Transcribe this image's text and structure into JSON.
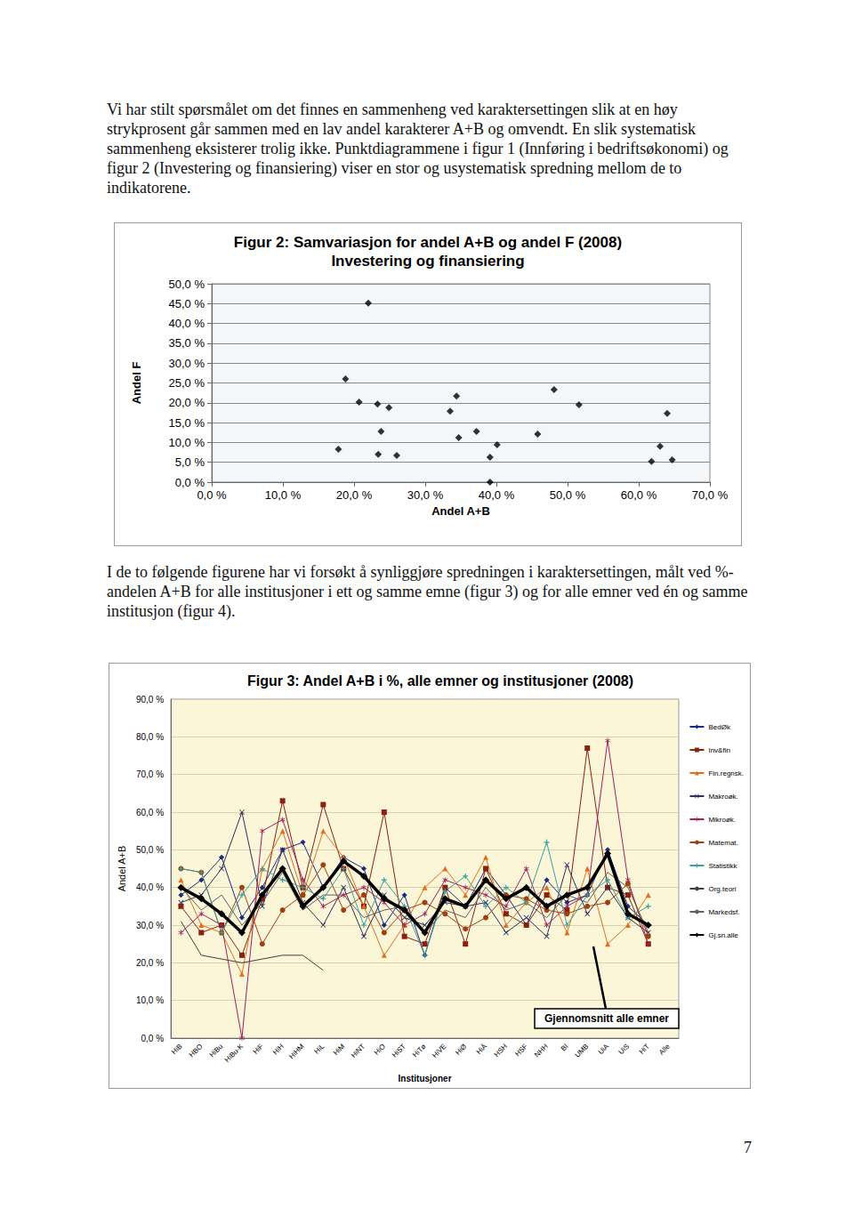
{
  "paragraphs": [
    "Vi har stilt spørsmålet om det finnes en sammenheng ved karaktersettingen slik at en høy strykprosent går sammen med en lav andel karakterer A+B og omvendt. En slik systematisk sammenheng eksisterer trolig ikke. Punktdiagrammene i figur 1 (Innføring i bedriftsøkonomi) og figur 2 (Investering og finansiering) viser en stor og usystematisk spredning mellom de to indikatorene.",
    "I de to følgende figurene har vi forsøkt å synliggjøre spredningen i karaktersettingen, målt ved %-andelen A+B for alle institusjoner i ett og samme emne (figur 3) og for alle emner ved én og samme institusjon (figur 4)."
  ],
  "page_number": "7",
  "chart_data": [
    {
      "type": "scatter",
      "title": "Figur 2: Samvariasjon for andel A+B og andel F (2008)",
      "subtitle": "Investering og finansiering",
      "x_label": "Andel A+B",
      "y_label": "Andel F",
      "x": [
        22.0,
        18.8,
        20.7,
        23.3,
        24.9,
        34.4,
        33.5,
        48.1,
        51.6,
        64.0,
        23.8,
        37.2,
        34.7,
        45.8,
        40.1,
        17.8,
        23.4,
        26.0,
        39.1,
        63.0,
        61.8,
        64.7,
        39.1
      ],
      "values": [
        45.1,
        26.0,
        20.2,
        19.7,
        18.8,
        21.7,
        17.9,
        23.3,
        19.5,
        17.3,
        12.8,
        12.8,
        11.2,
        12.1,
        9.4,
        8.3,
        7.0,
        6.7,
        6.3,
        9.0,
        5.2,
        5.6,
        0.0
      ],
      "color": "#000000",
      "marker": "diamond",
      "grid": true,
      "xlim": [
        0,
        70
      ],
      "xticks": [
        {
          "value": 0,
          "label": "0,0 %"
        },
        {
          "value": 10,
          "label": "10,0 %"
        },
        {
          "value": 20,
          "label": "20,0 %"
        },
        {
          "value": 30,
          "label": "30,0 %"
        },
        {
          "value": 40,
          "label": "40,0 %"
        },
        {
          "value": 50,
          "label": "50,0 %"
        },
        {
          "value": 60,
          "label": "60,0 %"
        },
        {
          "value": 70,
          "label": "70,0 %"
        }
      ],
      "ylim": [
        0,
        50
      ],
      "yticks": [
        {
          "value": 0,
          "label": "0,0 %"
        },
        {
          "value": 5,
          "label": "5,0 %"
        },
        {
          "value": 10,
          "label": "10,0 %"
        },
        {
          "value": 15,
          "label": "15,0 %"
        },
        {
          "value": 20,
          "label": "20,0 %"
        },
        {
          "value": 25,
          "label": "25,0 %"
        },
        {
          "value": 30,
          "label": "30,0 %"
        },
        {
          "value": 35,
          "label": "35,0 %"
        },
        {
          "value": 40,
          "label": "40,0 %"
        },
        {
          "value": 45,
          "label": "45,0 %"
        },
        {
          "value": 50,
          "label": "50,0 %"
        }
      ]
    },
    {
      "type": "line",
      "title": "Figur 3: Andel A+B i %, alle emner og institusjoner (2008)",
      "x_label": "Institusjoner",
      "y_label": "Andel A+B",
      "annotation": "Gjennomsnitt alle emner",
      "legend": "right",
      "grid": true,
      "categories": [
        "HiB",
        "HBO",
        "HiBu",
        "HiBu-K",
        "HiF",
        "HiH",
        "HiHM",
        "HiL",
        "HiM",
        "HiNT",
        "HiO",
        "HiST",
        "HiTø",
        "HiVE",
        "HiØ",
        "HiÅ",
        "HSH",
        "HSF",
        "NHH",
        "BI",
        "UMB",
        "UiA",
        "UiS",
        "HiT",
        "Alle"
      ],
      "ylim": [
        0,
        90
      ],
      "yticks": [
        {
          "value": 0,
          "label": "0,0 %"
        },
        {
          "value": 10,
          "label": "10,0 %"
        },
        {
          "value": 20,
          "label": "20,0 %"
        },
        {
          "value": 30,
          "label": "30,0 %"
        },
        {
          "value": 40,
          "label": "40,0 %"
        },
        {
          "value": 50,
          "label": "50,0 %"
        },
        {
          "value": 60,
          "label": "60,0 %"
        },
        {
          "value": 70,
          "label": "70,0 %"
        },
        {
          "value": 80,
          "label": "80,0 %"
        },
        {
          "value": 90,
          "label": "90,0 %"
        }
      ],
      "series": [
        {
          "name": "BedØk",
          "color": "#1c2a80",
          "marker": "diamond",
          "values": [
            38,
            42,
            48,
            32,
            40,
            50,
            52,
            40,
            48,
            45,
            30,
            38,
            22,
            40,
            35,
            45,
            38,
            30,
            42,
            36,
            38,
            50,
            35,
            30,
            null
          ]
        },
        {
          "name": "Inv&fin",
          "color": "#8b2010",
          "marker": "square",
          "values": [
            35,
            28,
            30,
            22,
            37,
            63,
            40,
            62,
            45,
            35,
            60,
            27,
            25,
            40,
            25,
            45,
            33,
            30,
            38,
            34,
            77,
            40,
            38,
            25,
            null
          ]
        },
        {
          "name": "Fin.regnsk.",
          "color": "#e07020",
          "marker": "triangle",
          "values": [
            42,
            30,
            28,
            17,
            45,
            55,
            38,
            55,
            48,
            35,
            22,
            30,
            40,
            45,
            38,
            48,
            30,
            36,
            40,
            28,
            45,
            25,
            30,
            38,
            null
          ]
        },
        {
          "name": "Makroøk.",
          "color": "#2e2e5e",
          "marker": "x",
          "values": [
            36,
            38,
            45,
            60,
            35,
            50,
            36,
            30,
            40,
            27,
            38,
            32,
            30,
            36,
            35,
            36,
            28,
            32,
            27,
            46,
            33,
            40,
            32,
            28,
            null
          ]
        },
        {
          "name": "Mikroøk.",
          "color": "#a02060",
          "marker": "star",
          "values": [
            28,
            33,
            30,
            0,
            55,
            58,
            42,
            35,
            38,
            40,
            36,
            30,
            33,
            42,
            40,
            38,
            35,
            45,
            30,
            35,
            38,
            79,
            42,
            25,
            null
          ]
        },
        {
          "name": "Matemat.",
          "color": "#a04010",
          "marker": "circle",
          "values": [
            45,
            44,
            28,
            40,
            25,
            34,
            38,
            46,
            34,
            38,
            28,
            34,
            36,
            33,
            29,
            32,
            38,
            37,
            34,
            33,
            35,
            36,
            41,
            27,
            null
          ]
        },
        {
          "name": "Statistikk",
          "color": "#3a9fa0",
          "marker": "plus",
          "values": [
            45,
            44,
            28,
            38,
            45,
            42,
            40,
            37,
            45,
            30,
            42,
            35,
            22,
            39,
            43,
            35,
            40,
            36,
            52,
            30,
            38,
            42,
            32,
            35,
            null
          ]
        },
        {
          "name": "Org.teori",
          "color": "#404040",
          "marker": "none",
          "values": [
            31,
            22,
            21,
            20,
            21,
            22,
            22,
            18,
            null,
            null,
            null,
            null,
            null,
            null,
            null,
            null,
            null,
            null,
            null,
            null,
            null,
            null,
            null,
            null,
            null
          ]
        },
        {
          "name": "Markedsf.",
          "color": "#606060",
          "marker": "none",
          "values": [
            40,
            34,
            38,
            30,
            36,
            44,
            34,
            38,
            38,
            32,
            34,
            35,
            28,
            34,
            32,
            40,
            34,
            36,
            32,
            38,
            36,
            44,
            40,
            28,
            null
          ]
        },
        {
          "name": "Gj.sn.alle",
          "color": "#000000",
          "marker": "diamond",
          "line_style": "bold",
          "values": [
            40,
            37,
            33,
            28,
            38,
            45,
            35,
            40,
            47,
            43,
            37,
            34,
            28,
            37,
            35,
            42,
            37,
            40,
            35,
            38,
            40,
            49,
            33,
            30,
            null
          ]
        }
      ]
    }
  ]
}
